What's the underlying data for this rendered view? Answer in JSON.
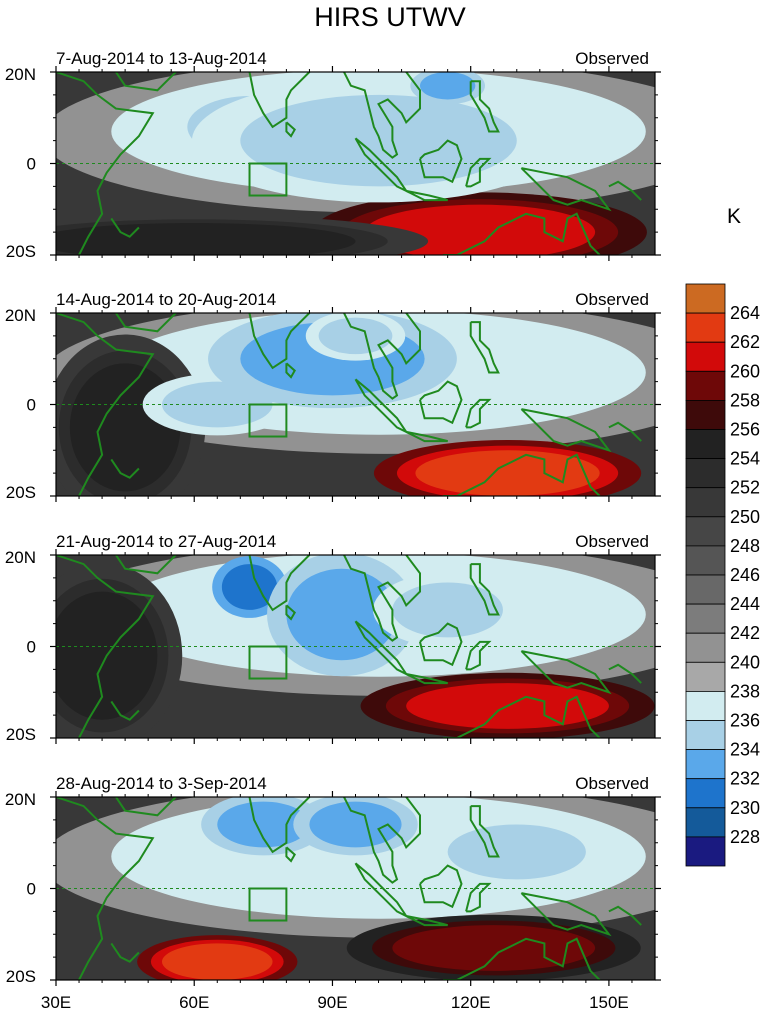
{
  "chart_data": {
    "type": "heatmap",
    "title": "HIRS UTWV",
    "colorbar": {
      "units": "K",
      "levels": [
        228,
        230,
        232,
        234,
        236,
        238,
        240,
        242,
        244,
        246,
        248,
        250,
        252,
        254,
        256,
        258,
        260,
        262,
        264
      ],
      "colors": [
        "#1a1a80",
        "#145a9a",
        "#1e74cc",
        "#5aa8ea",
        "#a8d0e6",
        "#d2ecf0",
        "#a8a8a8",
        "#929292",
        "#7c7c7c",
        "#686868",
        "#555555",
        "#464646",
        "#383838",
        "#2c2c2c",
        "#222222",
        "#3e0a0a",
        "#6e0808",
        "#d20a0a",
        "#e23a12",
        "#cc6a22"
      ]
    },
    "x_axis": {
      "ticks": [
        30,
        60,
        90,
        120,
        150
      ],
      "tick_labels": [
        "30E",
        "60E",
        "90E",
        "120E",
        "150E"
      ],
      "range": [
        30,
        160
      ]
    },
    "y_axis": {
      "ticks": [
        20,
        0,
        -20
      ],
      "tick_labels": [
        "20N",
        "0",
        "20S"
      ],
      "range": [
        -20,
        20
      ]
    },
    "box_region": {
      "lon": [
        72,
        80
      ],
      "lat": [
        -7,
        0
      ]
    },
    "panels": [
      {
        "period": "7-Aug-2014 to 13-Aug-2014",
        "label": "Observed",
        "features": [
          {
            "type": "dry",
            "lon": 135,
            "lat": -15,
            "value": 262,
            "rx": 15,
            "ry": 4
          },
          {
            "type": "dry",
            "lon": 122,
            "lat": -15,
            "value": 260,
            "rx": 25,
            "ry": 6
          },
          {
            "type": "dry",
            "lon": 60,
            "lat": -17,
            "value": 254,
            "rx": 35,
            "ry": 4
          },
          {
            "type": "wet",
            "lon": 72,
            "lat": 8,
            "value": 232,
            "rx": 10,
            "ry": 5
          },
          {
            "type": "wet",
            "lon": 100,
            "lat": 5,
            "value": 234,
            "rx": 30,
            "ry": 10
          },
          {
            "type": "wet",
            "lon": 115,
            "lat": 17,
            "value": 232,
            "rx": 6,
            "ry": 3
          }
        ]
      },
      {
        "period": "14-Aug-2014 to 20-Aug-2014",
        "label": "Observed",
        "features": [
          {
            "type": "dry",
            "lon": 128,
            "lat": -15,
            "value": 262,
            "rx": 20,
            "ry": 5
          },
          {
            "type": "dry",
            "lon": 45,
            "lat": -5,
            "value": 254,
            "rx": 12,
            "ry": 14
          },
          {
            "type": "wet",
            "lon": 65,
            "lat": 0,
            "value": 234,
            "rx": 12,
            "ry": 5
          },
          {
            "type": "wet",
            "lon": 90,
            "lat": 10,
            "value": 232,
            "rx": 20,
            "ry": 8
          },
          {
            "type": "wet",
            "lon": 95,
            "lat": 15,
            "value": 234,
            "rx": 8,
            "ry": 4
          }
        ]
      },
      {
        "period": "21-Aug-2014 to 27-Aug-2014",
        "label": "Observed",
        "features": [
          {
            "type": "dry",
            "lon": 128,
            "lat": -13,
            "value": 260,
            "rx": 22,
            "ry": 5
          },
          {
            "type": "dry",
            "lon": 40,
            "lat": -2,
            "value": 254,
            "rx": 12,
            "ry": 14
          },
          {
            "type": "wet",
            "lon": 72,
            "lat": 13,
            "value": 230,
            "rx": 6,
            "ry": 5
          },
          {
            "type": "wet",
            "lon": 92,
            "lat": 7,
            "value": 232,
            "rx": 12,
            "ry": 10
          },
          {
            "type": "wet",
            "lon": 115,
            "lat": 8,
            "value": 234,
            "rx": 12,
            "ry": 6
          }
        ]
      },
      {
        "period": "28-Aug-2014 to 3-Sep-2014",
        "label": "Observed",
        "features": [
          {
            "type": "dry",
            "lon": 65,
            "lat": -16,
            "value": 262,
            "rx": 12,
            "ry": 4
          },
          {
            "type": "dry",
            "lon": 125,
            "lat": -13,
            "value": 258,
            "rx": 22,
            "ry": 5
          },
          {
            "type": "wet",
            "lon": 75,
            "lat": 14,
            "value": 232,
            "rx": 10,
            "ry": 5
          },
          {
            "type": "wet",
            "lon": 95,
            "lat": 14,
            "value": 232,
            "rx": 10,
            "ry": 5
          },
          {
            "type": "wet",
            "lon": 130,
            "lat": 8,
            "value": 234,
            "rx": 15,
            "ry": 6
          }
        ]
      }
    ]
  }
}
